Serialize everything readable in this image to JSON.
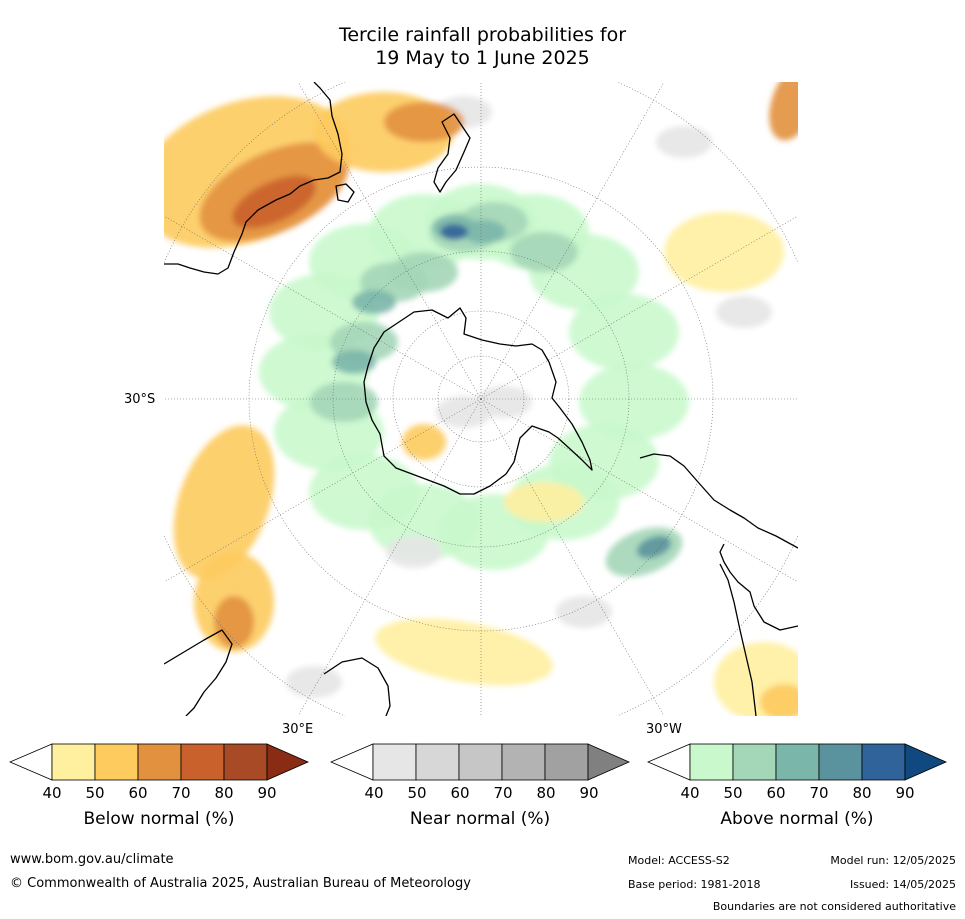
{
  "title": {
    "line1": "Tercile rainfall probabilities for",
    "line2": "19 May to 1 June 2025"
  },
  "map": {
    "projection": "south polar stereographic",
    "labels": {
      "lat_left": "30°S",
      "lon_bottom_left": "30°E",
      "lon_bottom_right": "30°W"
    },
    "colors": {
      "below_normal": [
        "#fff0a0",
        "#fdcb5e",
        "#e2913f",
        "#c9612d",
        "#a84a25",
        "#8a2c14"
      ],
      "near_normal": [
        "#e6e6e6",
        "#d7d7d7",
        "#c6c6c6",
        "#b3b3b3",
        "#a1a1a1",
        "#808080"
      ],
      "above_normal": [
        "#c9f8cc",
        "#a4d6b8",
        "#7bb6ab",
        "#5a939d",
        "#306399",
        "#10497f"
      ]
    }
  },
  "colorbars": [
    {
      "title": "Below normal (%)",
      "ticks": [
        "40",
        "50",
        "60",
        "70",
        "80",
        "90"
      ],
      "colors": [
        "#ffffff",
        "#fff0a0",
        "#fdcb5e",
        "#e2913f",
        "#c9612d",
        "#a84a25",
        "#8a2c14"
      ]
    },
    {
      "title": "Near normal (%)",
      "ticks": [
        "40",
        "50",
        "60",
        "70",
        "80",
        "90"
      ],
      "colors": [
        "#ffffff",
        "#e6e6e6",
        "#d7d7d7",
        "#c6c6c6",
        "#b3b3b3",
        "#a1a1a1",
        "#808080"
      ]
    },
    {
      "title": "Above normal (%)",
      "ticks": [
        "40",
        "50",
        "60",
        "70",
        "80",
        "90"
      ],
      "colors": [
        "#ffffff",
        "#c9f8cc",
        "#a4d6b8",
        "#7bb6ab",
        "#5a939d",
        "#306399",
        "#10497f"
      ]
    }
  ],
  "footer": {
    "website": "www.bom.gov.au/climate",
    "copyright": "© Commonwealth of Australia 2025, Australian Bureau of Meteorology",
    "model": "Model: ACCESS-S2",
    "base_period": "Base period: 1981-2018",
    "model_run": "Model run: 12/05/2025",
    "issued": "Issued: 14/05/2025",
    "disclaimer": "Boundaries are not considered authoritative"
  }
}
